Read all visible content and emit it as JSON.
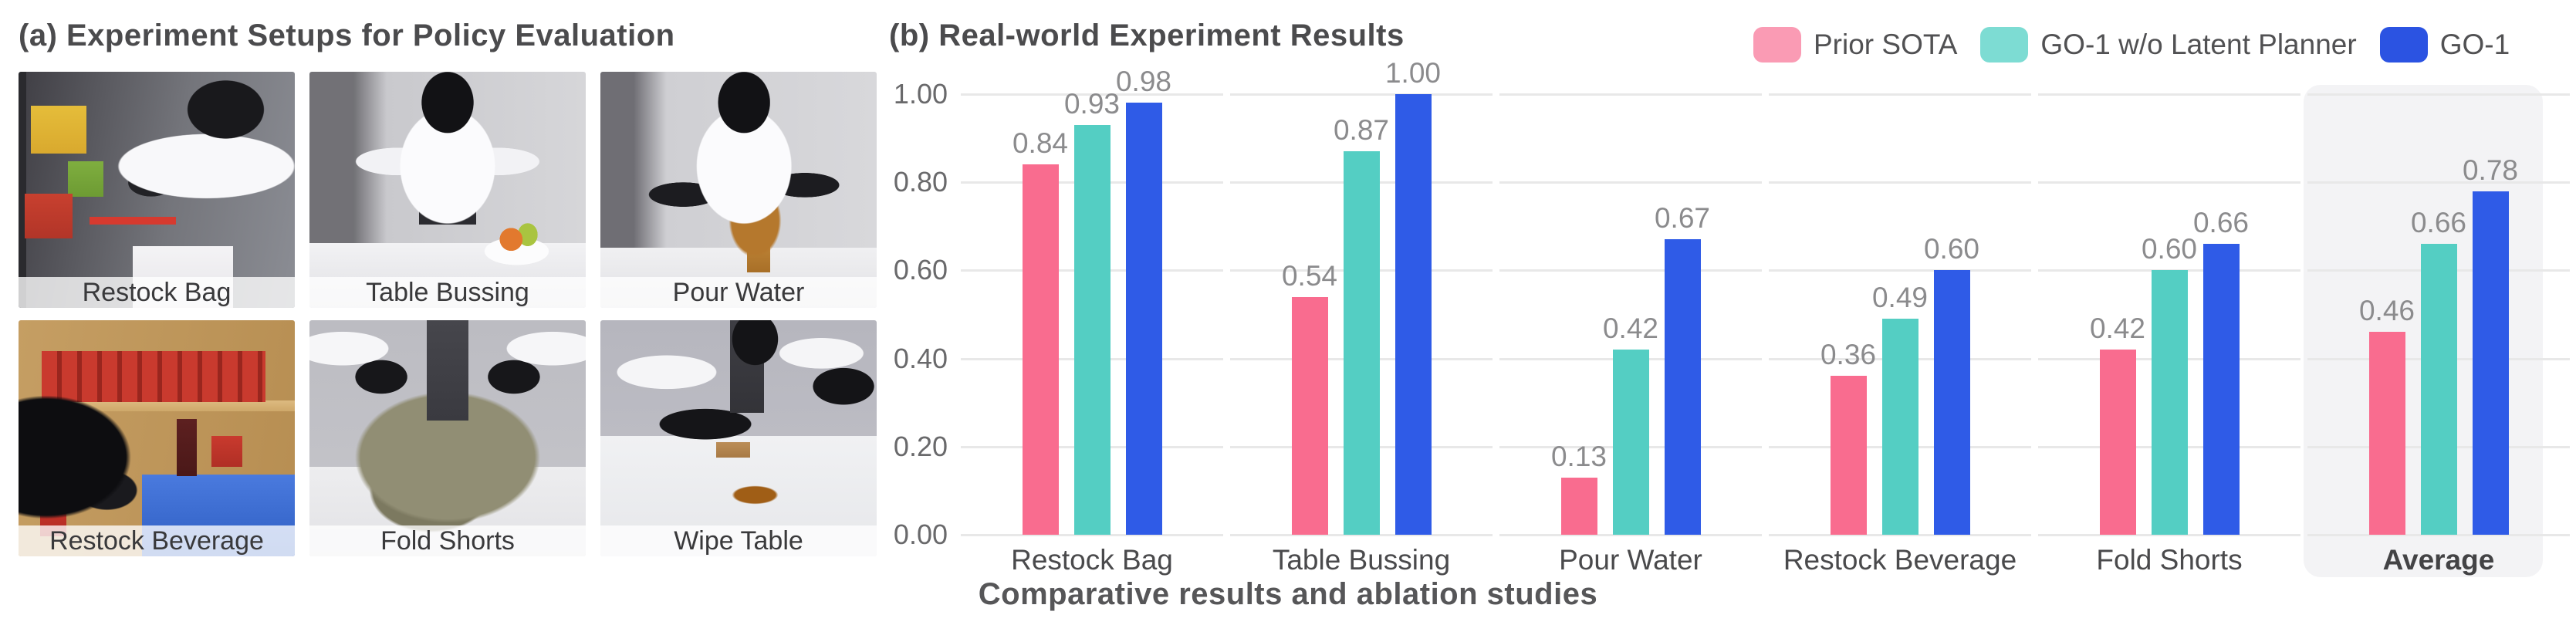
{
  "panel_a": {
    "title": "(a) Experiment Setups for Policy Evaluation",
    "photos": [
      {
        "label": "Restock Bag"
      },
      {
        "label": "Table Bussing"
      },
      {
        "label": "Pour Water"
      },
      {
        "label": "Restock Beverage"
      },
      {
        "label": "Fold Shorts"
      },
      {
        "label": "Wipe Table"
      }
    ]
  },
  "panel_b": {
    "title": "(b) Real-world Experiment Results",
    "caption": "Comparative results and ablation studies"
  },
  "chart_data": {
    "type": "bar",
    "title": "(b) Real-world Experiment Results",
    "categories": [
      "Restock Bag",
      "Table Bussing",
      "Pour Water",
      "Restock Beverage",
      "Fold Shorts",
      "Average"
    ],
    "series": [
      {
        "name": "Prior SOTA",
        "color": "#F96C8F",
        "legend_color": "#FA9BB4",
        "values": [
          0.84,
          0.54,
          0.13,
          0.36,
          0.42,
          0.46
        ]
      },
      {
        "name": "GO-1 w/o Latent Planner",
        "color": "#54CEC3",
        "legend_color": "#7DDCD3",
        "values": [
          0.93,
          0.87,
          0.42,
          0.49,
          0.6,
          0.66
        ]
      },
      {
        "name": "GO-1",
        "color": "#2F5BE7",
        "legend_color": "#2B53E2",
        "values": [
          0.98,
          1.0,
          0.67,
          0.6,
          0.66,
          0.78
        ]
      }
    ],
    "ylim": [
      0,
      1
    ],
    "yticks": [
      "0.00",
      "0.20",
      "0.40",
      "0.60",
      "0.80",
      "1.00"
    ],
    "grid": true,
    "legend_position": "top-right",
    "value_labels": true,
    "highlighted_category": "Average",
    "xlabel": "",
    "ylabel": ""
  },
  "colors": {
    "gridline": "#E8E8E8",
    "highlight_bg": "#F3F3F5",
    "title_text": "#4B4B4D",
    "value_label_text": "#8B8B8D",
    "tick_label_text": "#69696B",
    "category_label_text": "#4A4A4C",
    "caption_text": "#565658",
    "photo_label_text": "#39393B"
  }
}
